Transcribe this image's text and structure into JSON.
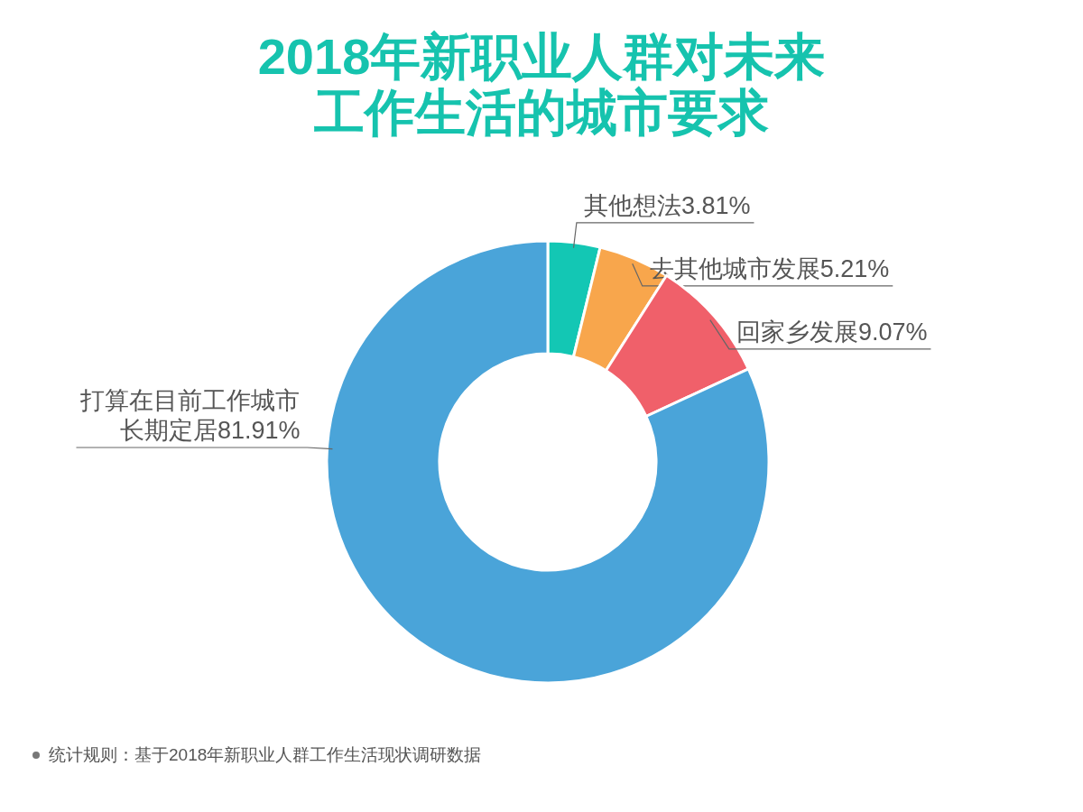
{
  "chart_data": {
    "type": "donut",
    "title": "2018年新职业人群对未来工作生活的城市要求",
    "categories": [
      "其他想法",
      "去其他城市发展",
      "回家乡发展",
      "打算在目前工作城市长期定居"
    ],
    "values": [
      3.81,
      5.21,
      9.07,
      81.91
    ],
    "value_labels": [
      "3.81%",
      "5.21%",
      "9.07%",
      "81.91%"
    ],
    "colors": [
      "#13c7b4",
      "#f8a64c",
      "#f0606a",
      "#4aa4d9"
    ],
    "annotations": [
      "统计规则：基于2018年新职业人群工作生活现状调研数据"
    ]
  }
}
